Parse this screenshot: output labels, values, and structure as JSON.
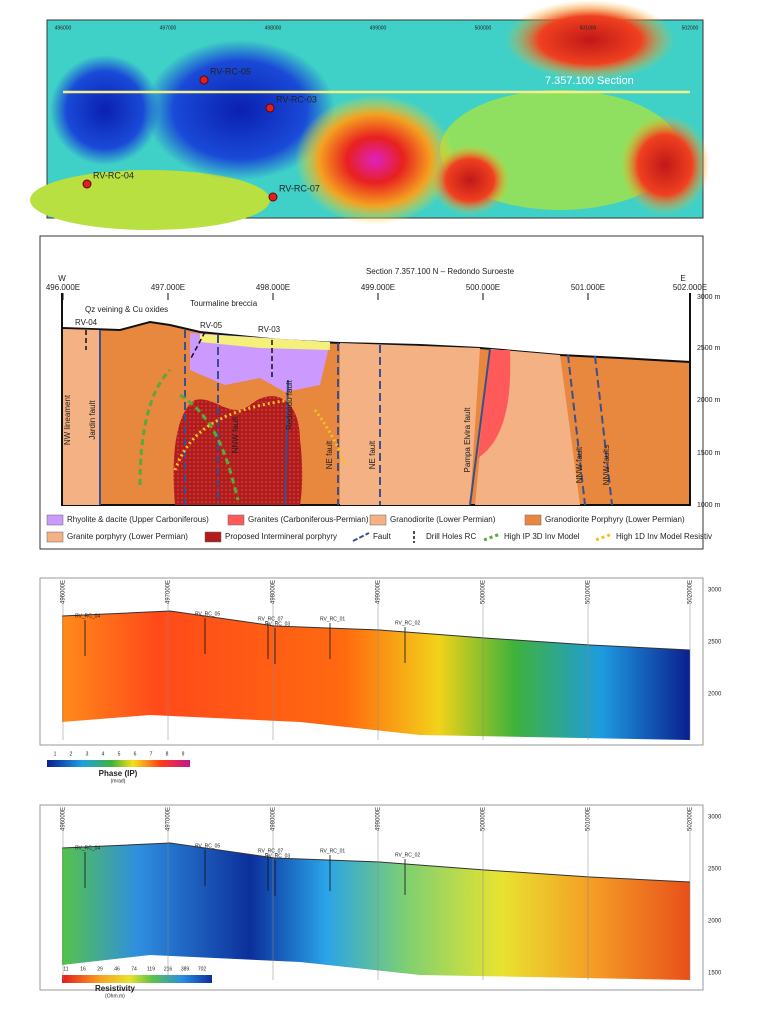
{
  "map": {
    "easting_labels": [
      "496000",
      "497000",
      "498000",
      "499000",
      "500000",
      "501000",
      "502000"
    ],
    "section_label": "7.357.100 Section",
    "drill_holes": [
      "RV-RC-05",
      "RV-RC-03",
      "RV-RC-04",
      "RV-RC-07"
    ]
  },
  "section": {
    "title": "Section 7.357.100 N – Redondo Suroeste",
    "west": "W",
    "east": "E",
    "easting_labels": [
      "496.000E",
      "497.000E",
      "498.000E",
      "499.000E",
      "500.000E",
      "501.000E",
      "502.000E"
    ],
    "elevation_labels": [
      "3000 m",
      "2500 m",
      "2000 m",
      "1500 m",
      "1000 m"
    ],
    "annotations": [
      "Qz veining & Cu oxides",
      "Tourmaline breccia"
    ],
    "drill_holes": [
      "RV-04",
      "RV-05",
      "RV-03"
    ],
    "structures": [
      "NW lineament",
      "Jardin fault",
      "NNW fault",
      "Redondo fault",
      "NE fault",
      "NE fault",
      "Pampa Elvira fault",
      "NNW fault",
      "NNW faults"
    ],
    "legend": [
      "Rhyolite & dacite (Upper Carboniferous)",
      "Granites (Carboniferous-Permian)",
      "Granodiorite (Lower Permian)",
      "Granodiorite Porphyry (Lower Permian)",
      "Granite porphyry (Lower Permian)",
      "Proposed Intermineral porphyry",
      "Fault",
      "Drill Holes RC",
      "High IP 3D Inv Model",
      "High 1D Inv Model Resistiv"
    ]
  },
  "ip_section": {
    "easting_labels": [
      "496000E",
      "497000E",
      "498000E",
      "499000E",
      "500000E",
      "501000E",
      "502000E"
    ],
    "elevation_labels": [
      "3000",
      "2500",
      "2000"
    ],
    "drill_holes": [
      "RV_RC_04",
      "RV_RC_05",
      "RV_RC_07",
      "RV_RC_03",
      "RV_RC_01",
      "RV_RC_02"
    ],
    "colorbar": {
      "labels": [
        "1",
        "2",
        "3",
        "4",
        "5",
        "6",
        "7",
        "8",
        "9"
      ],
      "title": "Phase (IP)",
      "unit": "(mrad)"
    }
  },
  "resistivity_section": {
    "easting_labels": [
      "496000E",
      "497000E",
      "498000E",
      "499000E",
      "500000E",
      "501000E",
      "502000E"
    ],
    "elevation_labels": [
      "3000",
      "2500",
      "2000",
      "1500"
    ],
    "drill_holes": [
      "RV_RC_04",
      "RV_RC_05",
      "RV_RC_07",
      "RV_RC_03",
      "RV_RC_01",
      "RV_RC_02"
    ],
    "colorbar": {
      "labels": [
        "11",
        "16",
        "29",
        "46",
        "74",
        "119",
        "216",
        "389",
        "702"
      ],
      "title": "Resistivity",
      "unit": "(Ohm.m)"
    }
  }
}
